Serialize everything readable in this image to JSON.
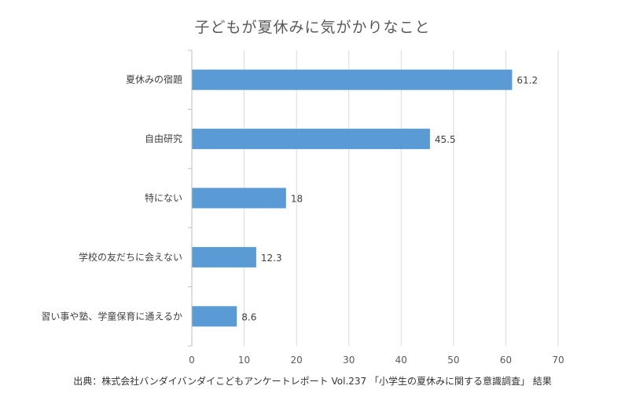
{
  "chart_data": {
    "type": "bar",
    "orientation": "horizontal",
    "title": "子どもが夏休みに気がかりなこと",
    "categories": [
      "夏休みの宿題",
      "自由研究",
      "特にない",
      "学校の友だちに会えない",
      "習い事や塾、学童保育に通えるか"
    ],
    "values": [
      61.2,
      45.5,
      18,
      12.3,
      8.6
    ],
    "value_labels": [
      "61.2",
      "45.5",
      "18",
      "12.3",
      "8.6"
    ],
    "xlim": [
      0,
      70
    ],
    "xticks": [
      0,
      10,
      20,
      30,
      40,
      50,
      60,
      70
    ],
    "grid": "vertical",
    "legend": "none",
    "bar_color": "#5B9BD5"
  },
  "source_note": "出典：株式会社バンダイバンダイこどもアンケートレポート Vol.237 「小学生の夏休みに関する意識調査」 結果"
}
